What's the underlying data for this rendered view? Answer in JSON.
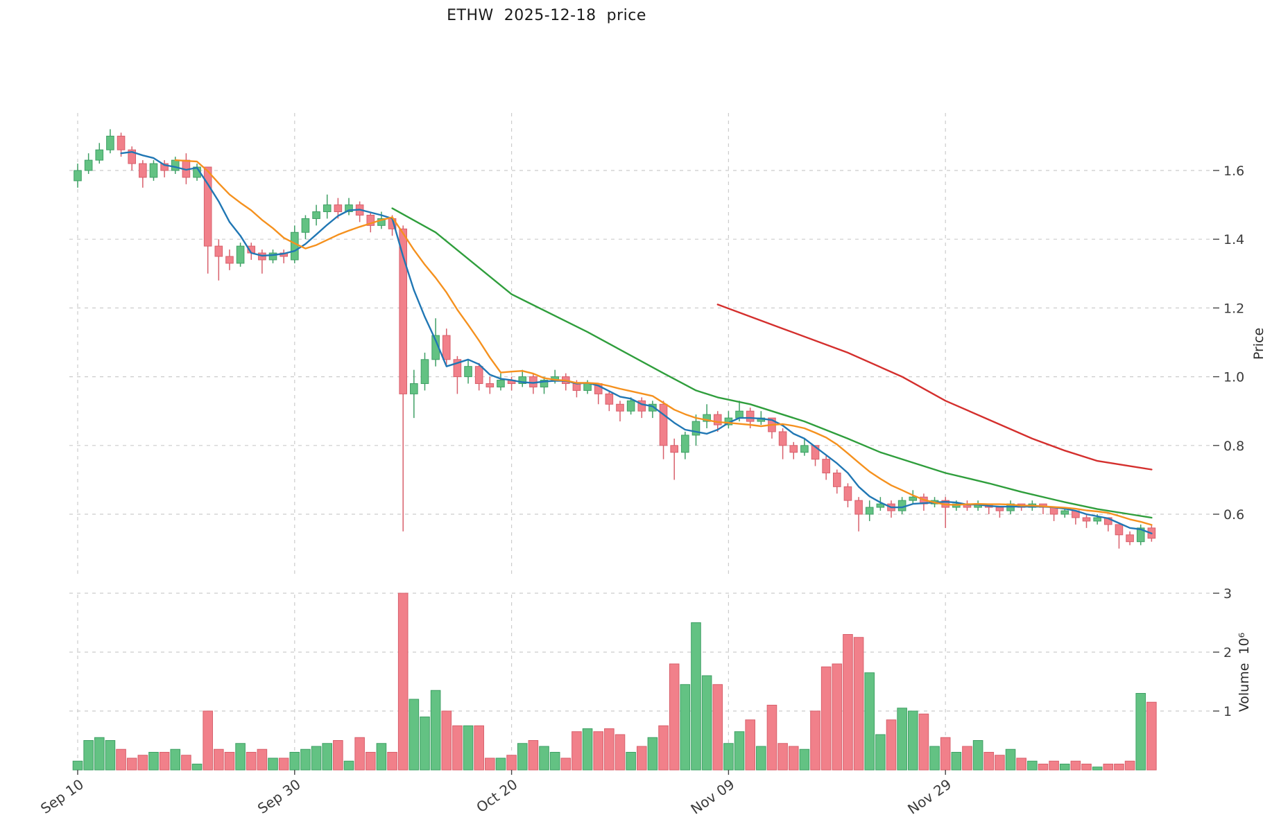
{
  "title": "ETHW  2025-12-18  price",
  "chart_data": {
    "type": "candlestick",
    "symbol": "ETHW",
    "as_of_date": "2025-12-18",
    "title": "ETHW  2025-12-18  price",
    "grid": "dashed",
    "legend": "none",
    "price_axis": {
      "label": "Price",
      "side": "right",
      "ticks": [
        0.6,
        0.8,
        1.0,
        1.2,
        1.4,
        1.6
      ],
      "range": [
        0.45,
        1.78
      ]
    },
    "volume_axis": {
      "label": "Volume  10⁶",
      "side": "right",
      "ticks": [
        1,
        2,
        3
      ],
      "unit": 1000000,
      "range": [
        0,
        3.1
      ]
    },
    "x_ticks": [
      {
        "i": 0,
        "label": "Sep 10"
      },
      {
        "i": 20,
        "label": "Sep 30"
      },
      {
        "i": 40,
        "label": "Oct 20"
      },
      {
        "i": 60,
        "label": "Nov 09"
      },
      {
        "i": 80,
        "label": "Nov 29"
      }
    ],
    "colors": {
      "up": "#63c283",
      "up_edge": "#3e9f64",
      "down": "#f1808a",
      "down_edge": "#d85f6b",
      "ma_fast": "#2077b4",
      "ma_slow": "#f5911e",
      "ma_long": "#2f9e3c",
      "ma_xlong": "#d42f2d",
      "grid": "#cccccc",
      "tick_text": "#3b3b3b"
    },
    "moving_averages": {
      "fast_window": 5,
      "slow_window": 10
    },
    "ma_long_points": [
      [
        29,
        1.49
      ],
      [
        33,
        1.42
      ],
      [
        40,
        1.24
      ],
      [
        47,
        1.13
      ],
      [
        54,
        1.01
      ],
      [
        57,
        0.96
      ],
      [
        59,
        0.94
      ],
      [
        62,
        0.92
      ],
      [
        67,
        0.87
      ],
      [
        71,
        0.82
      ],
      [
        74,
        0.78
      ],
      [
        77,
        0.75
      ],
      [
        80,
        0.72
      ],
      [
        84,
        0.69
      ],
      [
        87,
        0.665
      ],
      [
        91,
        0.635
      ],
      [
        94,
        0.615
      ],
      [
        97,
        0.6
      ],
      [
        99,
        0.59
      ]
    ],
    "ma_xlong_points": [
      [
        59,
        1.21
      ],
      [
        65,
        1.14
      ],
      [
        71,
        1.07
      ],
      [
        76,
        1.0
      ],
      [
        80,
        0.93
      ],
      [
        84,
        0.875
      ],
      [
        88,
        0.82
      ],
      [
        91,
        0.785
      ],
      [
        94,
        0.755
      ],
      [
        97,
        0.74
      ],
      [
        99,
        0.73
      ]
    ],
    "candle_fields": [
      "date",
      "open",
      "high",
      "low",
      "close",
      "volume_millions"
    ],
    "candles": [
      [
        "2025-09-10",
        1.57,
        1.62,
        1.55,
        1.6,
        0.15
      ],
      [
        "2025-09-11",
        1.6,
        1.65,
        1.59,
        1.63,
        0.5
      ],
      [
        "2025-09-12",
        1.63,
        1.68,
        1.62,
        1.66,
        0.55
      ],
      [
        "2025-09-13",
        1.66,
        1.72,
        1.65,
        1.7,
        0.5
      ],
      [
        "2025-09-14",
        1.7,
        1.71,
        1.64,
        1.66,
        0.35
      ],
      [
        "2025-09-15",
        1.66,
        1.67,
        1.6,
        1.62,
        0.2
      ],
      [
        "2025-09-16",
        1.62,
        1.63,
        1.55,
        1.58,
        0.25
      ],
      [
        "2025-09-17",
        1.58,
        1.63,
        1.57,
        1.62,
        0.3
      ],
      [
        "2025-09-18",
        1.62,
        1.63,
        1.58,
        1.6,
        0.3
      ],
      [
        "2025-09-19",
        1.6,
        1.64,
        1.59,
        1.63,
        0.35
      ],
      [
        "2025-09-20",
        1.63,
        1.65,
        1.56,
        1.58,
        0.25
      ],
      [
        "2025-09-21",
        1.58,
        1.62,
        1.57,
        1.61,
        0.1
      ],
      [
        "2025-09-22",
        1.61,
        1.61,
        1.3,
        1.38,
        1.0
      ],
      [
        "2025-09-23",
        1.38,
        1.4,
        1.28,
        1.35,
        0.35
      ],
      [
        "2025-09-24",
        1.35,
        1.37,
        1.31,
        1.33,
        0.3
      ],
      [
        "2025-09-25",
        1.33,
        1.39,
        1.32,
        1.38,
        0.45
      ],
      [
        "2025-09-26",
        1.38,
        1.39,
        1.34,
        1.36,
        0.3
      ],
      [
        "2025-09-27",
        1.36,
        1.37,
        1.3,
        1.34,
        0.35
      ],
      [
        "2025-09-28",
        1.34,
        1.37,
        1.33,
        1.36,
        0.2
      ],
      [
        "2025-09-29",
        1.36,
        1.37,
        1.33,
        1.35,
        0.2
      ],
      [
        "2025-09-30",
        1.34,
        1.44,
        1.33,
        1.42,
        0.3
      ],
      [
        "2025-10-01",
        1.42,
        1.47,
        1.4,
        1.46,
        0.35
      ],
      [
        "2025-10-02",
        1.46,
        1.5,
        1.44,
        1.48,
        0.4
      ],
      [
        "2025-10-03",
        1.48,
        1.53,
        1.46,
        1.5,
        0.45
      ],
      [
        "2025-10-04",
        1.5,
        1.52,
        1.46,
        1.48,
        0.5
      ],
      [
        "2025-10-05",
        1.48,
        1.52,
        1.47,
        1.5,
        0.15
      ],
      [
        "2025-10-06",
        1.5,
        1.51,
        1.45,
        1.47,
        0.55
      ],
      [
        "2025-10-07",
        1.47,
        1.48,
        1.42,
        1.44,
        0.3
      ],
      [
        "2025-10-08",
        1.44,
        1.48,
        1.43,
        1.46,
        0.45
      ],
      [
        "2025-10-09",
        1.46,
        1.47,
        1.41,
        1.43,
        0.3
      ],
      [
        "2025-10-10",
        1.43,
        1.44,
        0.55,
        0.95,
        3.0
      ],
      [
        "2025-10-11",
        0.95,
        1.02,
        0.88,
        0.98,
        1.2
      ],
      [
        "2025-10-12",
        0.98,
        1.07,
        0.96,
        1.05,
        0.9
      ],
      [
        "2025-10-13",
        1.05,
        1.17,
        1.03,
        1.12,
        1.35
      ],
      [
        "2025-10-14",
        1.12,
        1.14,
        1.03,
        1.05,
        1.0
      ],
      [
        "2025-10-15",
        1.05,
        1.06,
        0.95,
        1.0,
        0.75
      ],
      [
        "2025-10-16",
        1.0,
        1.05,
        0.98,
        1.03,
        0.75
      ],
      [
        "2025-10-17",
        1.03,
        1.04,
        0.96,
        0.98,
        0.75
      ],
      [
        "2025-10-18",
        0.98,
        1.0,
        0.95,
        0.97,
        0.2
      ],
      [
        "2025-10-19",
        0.97,
        1.01,
        0.96,
        0.99,
        0.2
      ],
      [
        "2025-10-20",
        0.99,
        1.0,
        0.96,
        0.98,
        0.25
      ],
      [
        "2025-10-21",
        0.98,
        1.02,
        0.97,
        1.0,
        0.45
      ],
      [
        "2025-10-22",
        1.0,
        1.01,
        0.95,
        0.97,
        0.5
      ],
      [
        "2025-10-23",
        0.97,
        1.0,
        0.95,
        0.99,
        0.4
      ],
      [
        "2025-10-24",
        0.99,
        1.02,
        0.98,
        1.0,
        0.3
      ],
      [
        "2025-10-25",
        1.0,
        1.01,
        0.96,
        0.98,
        0.2
      ],
      [
        "2025-10-26",
        0.98,
        0.99,
        0.94,
        0.96,
        0.65
      ],
      [
        "2025-10-27",
        0.96,
        0.99,
        0.95,
        0.98,
        0.7
      ],
      [
        "2025-10-28",
        0.98,
        0.98,
        0.92,
        0.95,
        0.65
      ],
      [
        "2025-10-29",
        0.95,
        0.96,
        0.9,
        0.92,
        0.7
      ],
      [
        "2025-10-30",
        0.92,
        0.93,
        0.87,
        0.9,
        0.6
      ],
      [
        "2025-10-31",
        0.9,
        0.94,
        0.89,
        0.93,
        0.3
      ],
      [
        "2025-11-01",
        0.93,
        0.94,
        0.88,
        0.9,
        0.4
      ],
      [
        "2025-11-02",
        0.9,
        0.93,
        0.88,
        0.92,
        0.55
      ],
      [
        "2025-11-03",
        0.92,
        0.93,
        0.76,
        0.8,
        0.75
      ],
      [
        "2025-11-04",
        0.8,
        0.82,
        0.7,
        0.78,
        1.8
      ],
      [
        "2025-11-05",
        0.78,
        0.84,
        0.76,
        0.83,
        1.45
      ],
      [
        "2025-11-06",
        0.83,
        0.89,
        0.8,
        0.87,
        2.5
      ],
      [
        "2025-11-07",
        0.87,
        0.92,
        0.85,
        0.89,
        1.6
      ],
      [
        "2025-11-08",
        0.89,
        0.9,
        0.84,
        0.86,
        1.45
      ],
      [
        "2025-11-09",
        0.86,
        0.9,
        0.85,
        0.88,
        0.45
      ],
      [
        "2025-11-10",
        0.88,
        0.93,
        0.87,
        0.9,
        0.65
      ],
      [
        "2025-11-11",
        0.9,
        0.91,
        0.85,
        0.87,
        0.85
      ],
      [
        "2025-11-12",
        0.87,
        0.9,
        0.86,
        0.88,
        0.4
      ],
      [
        "2025-11-13",
        0.88,
        0.88,
        0.82,
        0.84,
        1.1
      ],
      [
        "2025-11-14",
        0.84,
        0.85,
        0.76,
        0.8,
        0.45
      ],
      [
        "2025-11-15",
        0.8,
        0.81,
        0.76,
        0.78,
        0.4
      ],
      [
        "2025-11-16",
        0.78,
        0.82,
        0.77,
        0.8,
        0.35
      ],
      [
        "2025-11-17",
        0.8,
        0.8,
        0.74,
        0.76,
        1.0
      ],
      [
        "2025-11-18",
        0.76,
        0.77,
        0.7,
        0.72,
        1.75
      ],
      [
        "2025-11-19",
        0.72,
        0.73,
        0.66,
        0.68,
        1.8
      ],
      [
        "2025-11-20",
        0.68,
        0.69,
        0.62,
        0.64,
        2.3
      ],
      [
        "2025-11-21",
        0.64,
        0.65,
        0.55,
        0.6,
        2.25
      ],
      [
        "2025-11-22",
        0.6,
        0.64,
        0.58,
        0.62,
        1.65
      ],
      [
        "2025-11-23",
        0.62,
        0.65,
        0.61,
        0.63,
        0.6
      ],
      [
        "2025-11-24",
        0.63,
        0.64,
        0.59,
        0.61,
        0.85
      ],
      [
        "2025-11-25",
        0.61,
        0.65,
        0.6,
        0.64,
        1.05
      ],
      [
        "2025-11-26",
        0.64,
        0.67,
        0.63,
        0.65,
        1.0
      ],
      [
        "2025-11-27",
        0.65,
        0.66,
        0.61,
        0.63,
        0.95
      ],
      [
        "2025-11-28",
        0.63,
        0.65,
        0.62,
        0.64,
        0.4
      ],
      [
        "2025-11-29",
        0.64,
        0.65,
        0.56,
        0.62,
        0.55
      ],
      [
        "2025-11-30",
        0.62,
        0.64,
        0.61,
        0.63,
        0.3
      ],
      [
        "2025-12-01",
        0.63,
        0.64,
        0.61,
        0.62,
        0.4
      ],
      [
        "2025-12-02",
        0.62,
        0.64,
        0.61,
        0.63,
        0.5
      ],
      [
        "2025-12-03",
        0.63,
        0.63,
        0.6,
        0.62,
        0.3
      ],
      [
        "2025-12-04",
        0.62,
        0.62,
        0.59,
        0.61,
        0.25
      ],
      [
        "2025-12-05",
        0.61,
        0.64,
        0.6,
        0.63,
        0.35
      ],
      [
        "2025-12-06",
        0.63,
        0.63,
        0.61,
        0.62,
        0.2
      ],
      [
        "2025-12-07",
        0.62,
        0.64,
        0.61,
        0.63,
        0.15
      ],
      [
        "2025-12-08",
        0.63,
        0.63,
        0.6,
        0.62,
        0.1
      ],
      [
        "2025-12-09",
        0.62,
        0.62,
        0.58,
        0.6,
        0.15
      ],
      [
        "2025-12-10",
        0.6,
        0.62,
        0.59,
        0.61,
        0.1
      ],
      [
        "2025-12-11",
        0.61,
        0.61,
        0.57,
        0.59,
        0.15
      ],
      [
        "2025-12-12",
        0.59,
        0.6,
        0.56,
        0.58,
        0.1
      ],
      [
        "2025-12-13",
        0.58,
        0.6,
        0.57,
        0.59,
        0.05
      ],
      [
        "2025-12-14",
        0.59,
        0.59,
        0.55,
        0.57,
        0.1
      ],
      [
        "2025-12-15",
        0.57,
        0.57,
        0.5,
        0.54,
        0.1
      ],
      [
        "2025-12-16",
        0.54,
        0.55,
        0.51,
        0.52,
        0.15
      ],
      [
        "2025-12-17",
        0.52,
        0.57,
        0.51,
        0.56,
        1.3
      ],
      [
        "2025-12-18",
        0.56,
        0.57,
        0.52,
        0.53,
        1.15
      ]
    ]
  }
}
